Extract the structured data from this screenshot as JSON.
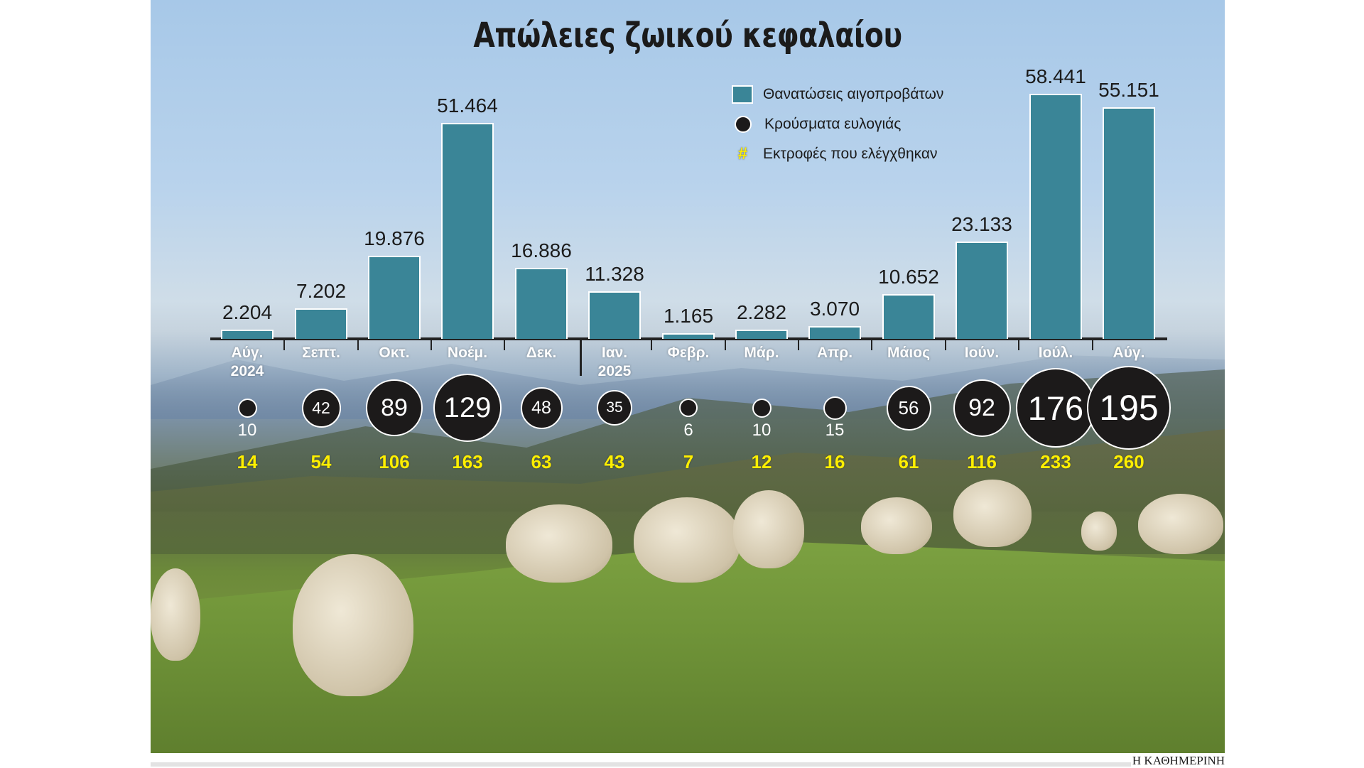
{
  "title": "Απώλειες ζωικού κεφαλαίου",
  "legend": [
    {
      "type": "bar",
      "label": "Θανατώσεις αιγοπροβάτων",
      "color": "#3a8597"
    },
    {
      "type": "circle",
      "label": "Κρούσματα ευλογιάς",
      "color": "#1c1a1a"
    },
    {
      "type": "hash",
      "label": "Εκτροφές που ελέγχθηκαν",
      "color": "#ffef00",
      "symbol": "#"
    }
  ],
  "months": [
    {
      "label": "Αύγ.",
      "year": "2024",
      "culls": "2.204",
      "cases": "10",
      "farms": "14"
    },
    {
      "label": "Σεπτ.",
      "year": "",
      "culls": "7.202",
      "cases": "42",
      "farms": "54"
    },
    {
      "label": "Οκτ.",
      "year": "",
      "culls": "19.876",
      "cases": "89",
      "farms": "106"
    },
    {
      "label": "Νοέμ.",
      "year": "",
      "culls": "51.464",
      "cases": "129",
      "farms": "163"
    },
    {
      "label": "Δεκ.",
      "year": "",
      "culls": "16.886",
      "cases": "48",
      "farms": "63"
    },
    {
      "label": "Ιαν.",
      "year": "2025",
      "culls": "11.328",
      "cases": "35",
      "farms": "43"
    },
    {
      "label": "Φεβρ.",
      "year": "",
      "culls": "1.165",
      "cases": "6",
      "farms": "7"
    },
    {
      "label": "Μάρ.",
      "year": "",
      "culls": "2.282",
      "cases": "10",
      "farms": "12"
    },
    {
      "label": "Απρ.",
      "year": "",
      "culls": "3.070",
      "cases": "15",
      "farms": "16"
    },
    {
      "label": "Μάιος",
      "year": "",
      "culls": "10.652",
      "cases": "56",
      "farms": "61"
    },
    {
      "label": "Ιούν.",
      "year": "",
      "culls": "23.133",
      "cases": "92",
      "farms": "116"
    },
    {
      "label": "Ιούλ.",
      "year": "",
      "culls": "58.441",
      "cases": "176",
      "farms": "233"
    },
    {
      "label": "Αύγ.",
      "year": "",
      "culls": "55.151",
      "cases": "195",
      "farms": "260"
    }
  ],
  "footer": {
    "brand": "Η ΚΑΘΗΜΕΡΙΝΗ"
  },
  "chart_data": {
    "type": "bar",
    "title": "Απώλειες ζωικού κεφαλαίου",
    "xlabel": "",
    "ylabel": "",
    "categories": [
      "Αύγ. 2024",
      "Σεπτ.",
      "Οκτ.",
      "Νοέμ.",
      "Δεκ.",
      "Ιαν. 2025",
      "Φεβρ.",
      "Μάρ.",
      "Απρ.",
      "Μάιος",
      "Ιούν.",
      "Ιούλ.",
      "Αύγ."
    ],
    "series": [
      {
        "name": "Θανατώσεις αιγοπροβάτων",
        "kind": "bar",
        "values": [
          2204,
          7202,
          19876,
          51464,
          16886,
          11328,
          1165,
          2282,
          3070,
          10652,
          23133,
          58441,
          55151
        ]
      },
      {
        "name": "Κρούσματα ευλογιάς",
        "kind": "bubble",
        "values": [
          10,
          42,
          89,
          129,
          48,
          35,
          6,
          10,
          15,
          56,
          92,
          176,
          195
        ]
      },
      {
        "name": "Εκτροφές που ελέγχθηκαν",
        "kind": "label",
        "values": [
          14,
          54,
          106,
          163,
          63,
          43,
          7,
          12,
          16,
          61,
          116,
          233,
          260
        ]
      }
    ],
    "grid": false,
    "legend_position": "top-center",
    "ylim": [
      0,
      60000
    ]
  }
}
